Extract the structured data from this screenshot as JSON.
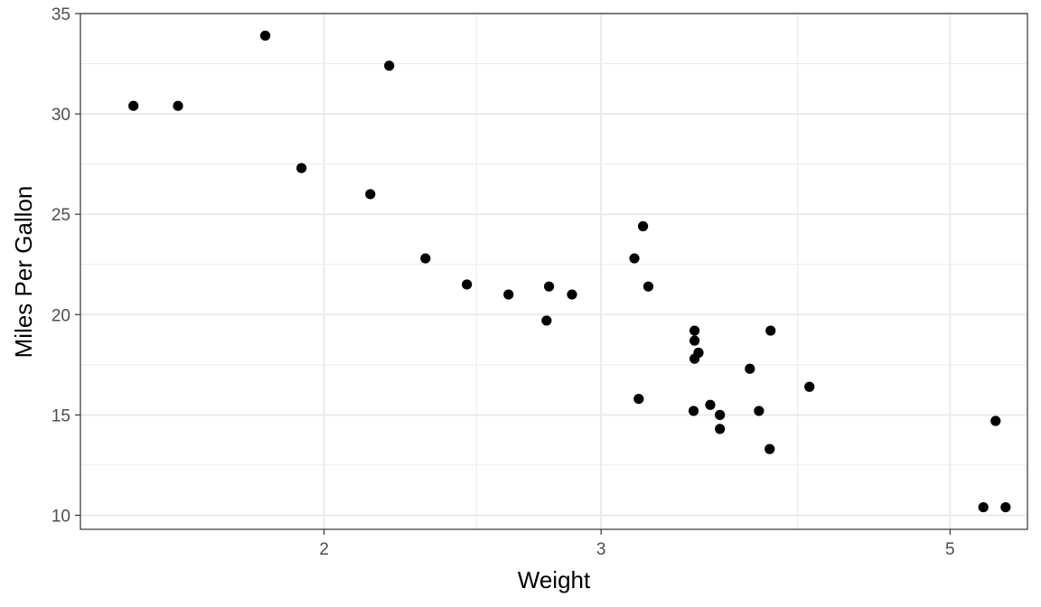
{
  "chart_data": {
    "type": "scatter",
    "title": "",
    "xlabel": "Weight",
    "ylabel": "Miles Per Gallon",
    "x_scale": "log",
    "xlim": [
      1.4,
      5.6
    ],
    "ylim": [
      9.3,
      35.0
    ],
    "x_ticks": [
      2,
      3,
      5
    ],
    "x_minor_ticks": [
      2.5,
      4
    ],
    "x_tick_labels": [
      "2",
      "3",
      "5"
    ],
    "y_ticks": [
      10,
      15,
      20,
      25,
      30,
      35
    ],
    "y_tick_labels": [
      "10",
      "15",
      "20",
      "25",
      "30",
      "35"
    ],
    "grid": true,
    "legend": "none",
    "point_color": "#000000",
    "panel_border_color": "#333333",
    "grid_color": "#ebebeb",
    "points": [
      {
        "x": 1.513,
        "y": 30.4
      },
      {
        "x": 1.615,
        "y": 30.4
      },
      {
        "x": 1.835,
        "y": 33.9
      },
      {
        "x": 1.935,
        "y": 27.3
      },
      {
        "x": 2.14,
        "y": 26.0
      },
      {
        "x": 2.2,
        "y": 32.4
      },
      {
        "x": 2.32,
        "y": 22.8
      },
      {
        "x": 2.465,
        "y": 21.5
      },
      {
        "x": 2.62,
        "y": 21.0
      },
      {
        "x": 2.77,
        "y": 19.7
      },
      {
        "x": 2.78,
        "y": 21.4
      },
      {
        "x": 2.875,
        "y": 21.0
      },
      {
        "x": 3.15,
        "y": 22.8
      },
      {
        "x": 3.17,
        "y": 15.8
      },
      {
        "x": 3.19,
        "y": 24.4
      },
      {
        "x": 3.215,
        "y": 21.4
      },
      {
        "x": 3.435,
        "y": 15.2
      },
      {
        "x": 3.44,
        "y": 19.2
      },
      {
        "x": 3.44,
        "y": 18.7
      },
      {
        "x": 3.44,
        "y": 17.8
      },
      {
        "x": 3.46,
        "y": 18.1
      },
      {
        "x": 3.52,
        "y": 15.5
      },
      {
        "x": 3.57,
        "y": 15.0
      },
      {
        "x": 3.57,
        "y": 14.3
      },
      {
        "x": 3.73,
        "y": 17.3
      },
      {
        "x": 3.78,
        "y": 15.2
      },
      {
        "x": 3.84,
        "y": 13.3
      },
      {
        "x": 3.845,
        "y": 19.2
      },
      {
        "x": 4.07,
        "y": 16.4
      },
      {
        "x": 5.25,
        "y": 10.4
      },
      {
        "x": 5.345,
        "y": 14.7
      },
      {
        "x": 5.424,
        "y": 10.4
      }
    ]
  }
}
